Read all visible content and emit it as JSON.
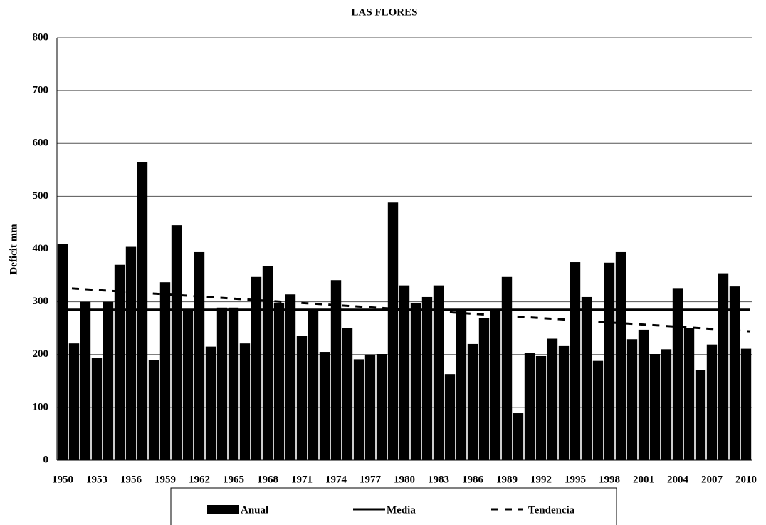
{
  "chart_data": {
    "type": "bar",
    "title": "LAS FLORES",
    "y_label": "Deficit mm",
    "categories": [
      "1950",
      null,
      null,
      "1953",
      null,
      null,
      "1956",
      null,
      null,
      "1959",
      null,
      null,
      "1962",
      null,
      null,
      "1965",
      null,
      null,
      "1968",
      null,
      null,
      "1971",
      null,
      null,
      "1974",
      null,
      null,
      "1977",
      null,
      null,
      "1980",
      null,
      null,
      "1983",
      null,
      null,
      "1986",
      null,
      null,
      "1989",
      null,
      null,
      "1992",
      null,
      null,
      "1995",
      null,
      null,
      "1998",
      null,
      null,
      "2001",
      null,
      null,
      "2004",
      null,
      null,
      "2007",
      null,
      null,
      "2010"
    ],
    "series": [
      {
        "name": "Anual",
        "color": "#000000",
        "values": [
          410,
          221,
          300,
          193,
          300,
          370,
          404,
          565,
          190,
          337,
          445,
          282,
          394,
          215,
          289,
          289,
          221,
          347,
          368,
          297,
          314,
          235,
          283,
          205,
          341,
          250,
          191,
          200,
          201,
          488,
          331,
          298,
          309,
          331,
          163,
          286,
          220,
          269,
          286,
          347,
          89,
          203,
          197,
          230,
          216,
          375,
          309,
          188,
          374,
          394,
          229,
          247,
          201,
          210,
          326,
          250,
          171,
          219,
          354,
          329,
          211
        ]
      }
    ],
    "lines": [
      {
        "name": "Media",
        "color": "#000000",
        "style": "solid",
        "values": [
          285,
          285
        ]
      },
      {
        "name": "Tendencia",
        "color": "#000000",
        "style": "dashed",
        "values": [
          327,
          244
        ]
      }
    ],
    "ylim": [
      0,
      800
    ],
    "yticks": [
      0,
      100,
      200,
      300,
      400,
      500,
      600,
      700,
      800
    ],
    "grid": true
  }
}
